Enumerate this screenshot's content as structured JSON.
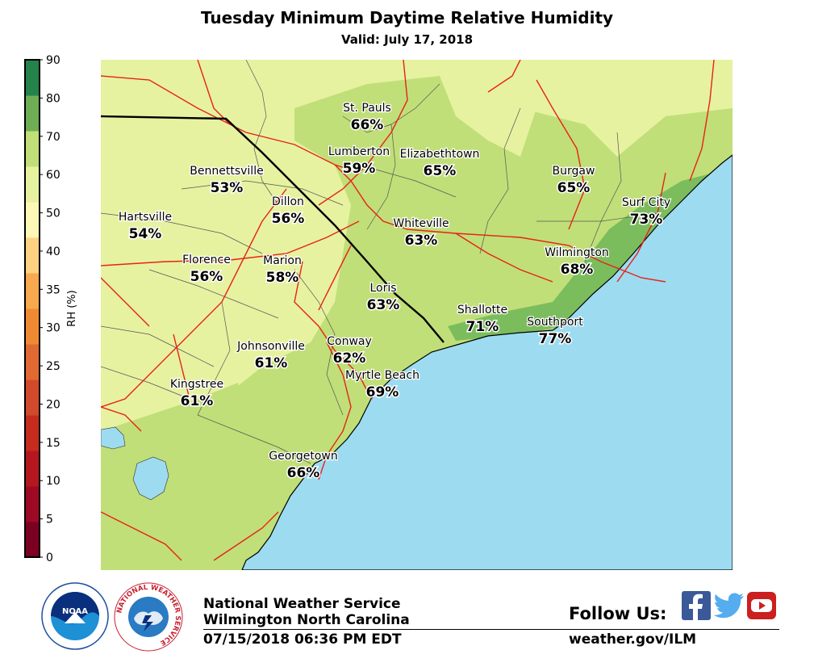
{
  "header": {
    "title": "Tuesday Minimum Daytime Relative Humidity",
    "subtitle": "Valid: July 17, 2018"
  },
  "colorbar": {
    "label": "RH (%)",
    "ticks": [
      "0",
      "5",
      "10",
      "15",
      "20",
      "25",
      "30",
      "35",
      "40",
      "50",
      "60",
      "70",
      "80",
      "90"
    ],
    "colors": [
      "#7b0022",
      "#9e0a24",
      "#b5171f",
      "#c62c1d",
      "#d24a2c",
      "#e06a32",
      "#f08a32",
      "#f8a84e",
      "#fdd280",
      "#fdf7b8",
      "#e6f2a0",
      "#c0df78",
      "#6fae55",
      "#23834a"
    ]
  },
  "map": {
    "colors": {
      "water": "#9ddbf0",
      "rh_50_60": "#e6f2a0",
      "rh_60_70": "#c0df78",
      "rh_70_80": "#7bbd5d",
      "roads": "#e8211a",
      "state_line": "#000000",
      "county_lines": "#555555"
    },
    "cities": [
      {
        "name": "St. Pauls",
        "value": "66%"
      },
      {
        "name": "Lumberton",
        "value": "59%"
      },
      {
        "name": "Elizabethtown",
        "value": "65%"
      },
      {
        "name": "Bennettsville",
        "value": "53%"
      },
      {
        "name": "Dillon",
        "value": "56%"
      },
      {
        "name": "Burgaw",
        "value": "65%"
      },
      {
        "name": "Surf City",
        "value": "73%"
      },
      {
        "name": "Hartsville",
        "value": "54%"
      },
      {
        "name": "Whiteville",
        "value": "63%"
      },
      {
        "name": "Florence",
        "value": "56%"
      },
      {
        "name": "Marion",
        "value": "58%"
      },
      {
        "name": "Wilmington",
        "value": "68%"
      },
      {
        "name": "Loris",
        "value": "63%"
      },
      {
        "name": "Shallotte",
        "value": "71%"
      },
      {
        "name": "Southport",
        "value": "77%"
      },
      {
        "name": "Johnsonville",
        "value": "61%"
      },
      {
        "name": "Conway",
        "value": "62%"
      },
      {
        "name": "Myrtle Beach",
        "value": "69%"
      },
      {
        "name": "Kingstree",
        "value": "61%"
      },
      {
        "name": "Georgetown",
        "value": "66%"
      }
    ]
  },
  "footer": {
    "org": "National Weather Service",
    "office": "Wilmington North Carolina",
    "timestamp": "07/15/2018 06:36 PM EDT",
    "follow": "Follow Us:",
    "website": "weather.gov/ILM",
    "noaa_text": "NOAA",
    "nws_ring_text": "NATIONAL WEATHER SERVICE"
  }
}
